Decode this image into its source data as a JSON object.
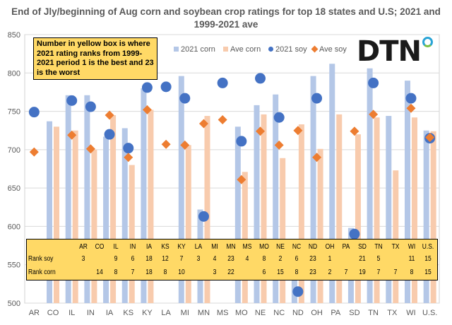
{
  "chart_data": {
    "type": "bar",
    "title": "End of Jly/beginning of Aug corn and soybean crop ratings for top 18 states and U.S; 2021 and 1999-2021 ave",
    "categories": [
      "AR",
      "CO",
      "IL",
      "IN",
      "IA",
      "KS",
      "KY",
      "LA",
      "MI",
      "MN",
      "MS",
      "MO",
      "NE",
      "NC",
      "ND",
      "OH",
      "PA",
      "SD",
      "TN",
      "TX",
      "WI",
      "U.S."
    ],
    "ylim": [
      500,
      850
    ],
    "yticks": [
      500,
      550,
      600,
      650,
      700,
      750,
      800,
      850
    ],
    "grid": true,
    "legend_placement": "top-right",
    "series": [
      {
        "name": "2021 corn",
        "kind": "bar",
        "color": "#B4C7E7",
        "values": [
          null,
          737,
          771,
          771,
          717,
          728,
          780,
          null,
          796,
          622,
          null,
          730,
          758,
          772,
          560,
          796,
          812,
          598,
          806,
          744,
          790,
          725
        ]
      },
      {
        "name": "Ave corn",
        "kind": "bar",
        "color": "#F8CBAD",
        "values": [
          null,
          730,
          725,
          700,
          745,
          680,
          752,
          null,
          706,
          744,
          null,
          671,
          746,
          689,
          733,
          701,
          746,
          720,
          742,
          673,
          742,
          724
        ]
      },
      {
        "name": "2021 soy",
        "kind": "scatter",
        "marker": "circle",
        "color": "#4472C4",
        "values": [
          749,
          null,
          764,
          756,
          720,
          702,
          781,
          782,
          767,
          613,
          787,
          711,
          793,
          742,
          515,
          767,
          null,
          590,
          787,
          null,
          767,
          715
        ]
      },
      {
        "name": "Ave soy",
        "kind": "scatter",
        "marker": "diamond",
        "color": "#ED7D31",
        "values": [
          697,
          null,
          719,
          701,
          745,
          690,
          752,
          707,
          706,
          734,
          739,
          661,
          724,
          706,
          725,
          690,
          null,
          724,
          746,
          null,
          754,
          716
        ]
      }
    ],
    "annotation": "Number in yellow box is where 2021 rating ranks from 1999-2021 period  1 is the best and 23 is the worst",
    "rank_table": {
      "columns": [
        "AR",
        "CO",
        "IL",
        "IN",
        "IA",
        "KS",
        "KY",
        "LA",
        "MI",
        "MN",
        "MS",
        "MO",
        "NE",
        "NC",
        "ND",
        "OH",
        "PA",
        "SD",
        "TN",
        "TX",
        "WI",
        "U.S."
      ],
      "rows": [
        {
          "label": "Rank soy",
          "values": [
            "3",
            "",
            "9",
            "6",
            "18",
            "12",
            "7",
            "3",
            "4",
            "23",
            "4",
            "8",
            "2",
            "6",
            "23",
            "1",
            "",
            "21",
            "5",
            "",
            "11",
            "15"
          ]
        },
        {
          "label": "Rank corn",
          "values": [
            "",
            "14",
            "8",
            "7",
            "18",
            "8",
            "10",
            "",
            "3",
            "22",
            "",
            "6",
            "15",
            "8",
            "23",
            "2",
            "7",
            "19",
            "7",
            "7",
            "8",
            "15"
          ]
        }
      ]
    }
  },
  "logo": "DTN"
}
